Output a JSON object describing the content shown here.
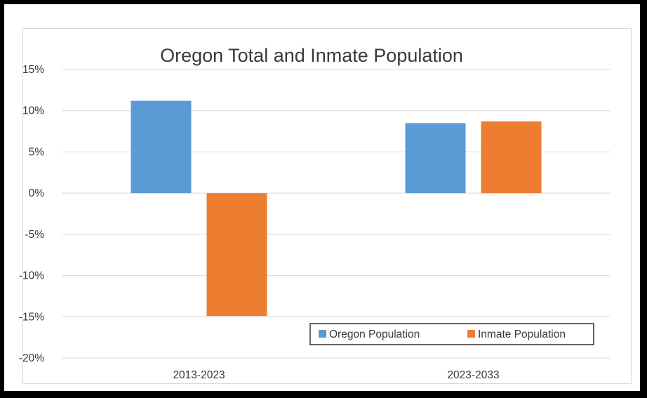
{
  "chart_data": {
    "type": "bar",
    "title": "Oregon Total and Inmate Population",
    "categories": [
      "2013-2023",
      "2023-2033"
    ],
    "series": [
      {
        "name": "Oregon Population",
        "values": [
          11.2,
          8.5
        ],
        "color": "#5b9bd5"
      },
      {
        "name": "Inmate Population",
        "values": [
          -14.9,
          8.7
        ],
        "color": "#ed7d31"
      }
    ],
    "ylim": [
      -20,
      15
    ],
    "yticks": [
      "15%",
      "10%",
      "5%",
      "0%",
      "-5%",
      "-10%",
      "-15%",
      "-20%"
    ],
    "ytick_values": [
      15,
      10,
      5,
      0,
      -5,
      -10,
      -15,
      -20
    ],
    "grid": true,
    "legend_position": "bottom-right",
    "xlabel": "",
    "ylabel": ""
  }
}
